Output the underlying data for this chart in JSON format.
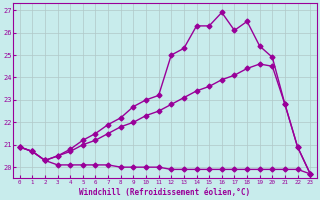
{
  "xlabel": "Windchill (Refroidissement éolien,°C)",
  "bg_color": "#c8ecec",
  "line_color": "#990099",
  "grid_color": "#b0c8c8",
  "xlim": [
    -0.5,
    23.5
  ],
  "ylim": [
    19.5,
    27.3
  ],
  "yticks": [
    20,
    21,
    22,
    23,
    24,
    25,
    26,
    27
  ],
  "xticks": [
    0,
    1,
    2,
    3,
    4,
    5,
    6,
    7,
    8,
    9,
    10,
    11,
    12,
    13,
    14,
    15,
    16,
    17,
    18,
    19,
    20,
    21,
    22,
    23
  ],
  "line1_x": [
    0,
    1,
    2,
    3,
    4,
    5,
    6,
    7,
    8,
    9,
    10,
    11,
    12,
    13,
    14,
    15,
    16,
    17,
    18,
    19,
    20,
    21,
    22,
    23
  ],
  "line1_y": [
    20.9,
    20.7,
    20.3,
    20.1,
    20.1,
    20.1,
    20.1,
    20.1,
    20.0,
    20.0,
    20.0,
    20.0,
    19.9,
    19.9,
    19.9,
    19.9,
    19.9,
    19.9,
    19.9,
    19.9,
    19.9,
    19.9,
    19.9,
    19.7
  ],
  "line2_x": [
    0,
    1,
    2,
    3,
    4,
    5,
    6,
    7,
    8,
    9,
    10,
    11,
    12,
    13,
    14,
    15,
    16,
    17,
    18,
    19,
    20,
    21,
    22,
    23
  ],
  "line2_y": [
    20.9,
    20.7,
    20.3,
    20.5,
    20.7,
    21.0,
    21.2,
    21.5,
    21.8,
    22.0,
    22.3,
    22.5,
    22.8,
    23.1,
    23.4,
    23.6,
    23.9,
    24.1,
    24.4,
    24.6,
    24.5,
    22.8,
    20.9,
    19.7
  ],
  "line3_x": [
    0,
    1,
    2,
    3,
    4,
    5,
    6,
    7,
    8,
    9,
    10,
    11,
    12,
    13,
    14,
    15,
    16,
    17,
    18,
    19,
    20,
    21,
    22,
    23
  ],
  "line3_y": [
    20.9,
    20.7,
    20.3,
    20.5,
    20.8,
    21.2,
    21.5,
    21.9,
    22.2,
    22.7,
    23.0,
    23.2,
    25.0,
    25.3,
    26.3,
    26.3,
    26.9,
    26.1,
    26.5,
    25.4,
    24.9,
    22.8,
    20.9,
    19.7
  ],
  "marker": "D",
  "marker_size": 2.5,
  "line_width": 1.0
}
